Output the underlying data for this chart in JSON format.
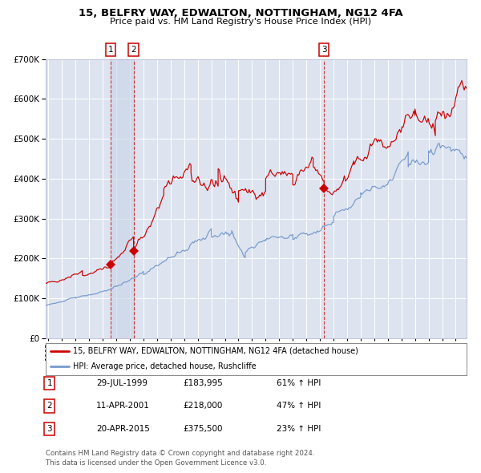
{
  "title1": "15, BELFRY WAY, EDWALTON, NOTTINGHAM, NG12 4FA",
  "title2": "Price paid vs. HM Land Registry's House Price Index (HPI)",
  "red_label": "15, BELFRY WAY, EDWALTON, NOTTINGHAM, NG12 4FA (detached house)",
  "blue_label": "HPI: Average price, detached house, Rushcliffe",
  "footer1": "Contains HM Land Registry data © Crown copyright and database right 2024.",
  "footer2": "This data is licensed under the Open Government Licence v3.0.",
  "transactions": [
    {
      "id": 1,
      "date": "29-JUL-1999",
      "price": 183995,
      "pct": "61%",
      "dir": "↑"
    },
    {
      "id": 2,
      "date": "11-APR-2001",
      "price": 218000,
      "pct": "47%",
      "dir": "↑"
    },
    {
      "id": 3,
      "date": "20-APR-2015",
      "price": 375500,
      "pct": "23%",
      "dir": "↑"
    }
  ],
  "t1_x": 1999.57,
  "t2_x": 2001.27,
  "t3_x": 2015.3,
  "t1_y": 183995,
  "t2_y": 218000,
  "t3_y": 375500,
  "ylim": [
    0,
    700000
  ],
  "xlim_start": 1994.8,
  "xlim_end": 2025.8,
  "plot_bg": "#dde4f0",
  "red_color": "#cc0000",
  "blue_color": "#7799cc",
  "grid_color": "#ffffff",
  "dashed_color": "#cc0000",
  "span_color": "#c8d4e8"
}
